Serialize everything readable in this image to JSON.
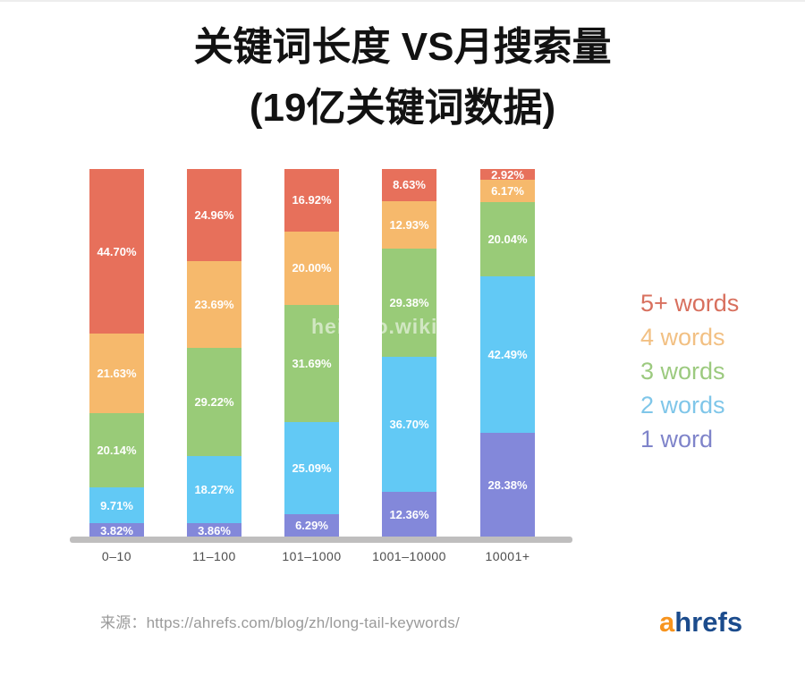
{
  "title": {
    "line1": "关键词长度 VS月搜索量",
    "line2": "(19亿关键词数据)"
  },
  "chart_data": {
    "type": "bar",
    "variant": "stacked-100-percent",
    "title": "关键词长度 VS月搜索量 (19亿关键词数据)",
    "categories": [
      "0–10",
      "11–100",
      "101–1000",
      "1001–10000",
      "10001+"
    ],
    "series": [
      {
        "name": "1 word",
        "color": "#8388da",
        "values": [
          3.82,
          3.86,
          6.29,
          12.36,
          28.38
        ]
      },
      {
        "name": "2 words",
        "color": "#62c9f5",
        "values": [
          9.71,
          18.27,
          25.09,
          36.7,
          42.49
        ]
      },
      {
        "name": "3 words",
        "color": "#99cb78",
        "values": [
          20.14,
          29.22,
          31.69,
          29.38,
          20.04
        ]
      },
      {
        "name": "4 words",
        "color": "#f6b96c",
        "values": [
          21.63,
          23.69,
          20.0,
          12.93,
          6.17
        ]
      },
      {
        "name": "5+ words",
        "color": "#e7705b",
        "values": [
          44.7,
          24.96,
          16.92,
          8.63,
          2.92
        ]
      }
    ],
    "legend": {
      "position": "right",
      "items": [
        {
          "label": "5+ words",
          "color": "#d8705e"
        },
        {
          "label": "4 words",
          "color": "#f2c083"
        },
        {
          "label": "3 words",
          "color": "#9cca7f"
        },
        {
          "label": "2 words",
          "color": "#7fc6e9"
        },
        {
          "label": "1 word",
          "color": "#7f84ca"
        }
      ]
    },
    "value_suffix": "%",
    "value_decimals": 2,
    "ylim": [
      0,
      100
    ],
    "grid": false
  },
  "watermark": {
    "text": "heimao.wiki"
  },
  "footer": {
    "source": "来源：https://ahrefs.com/blog/zh/long-tail-keywords/",
    "logo": {
      "prefix": "a",
      "suffix": "hrefs",
      "prefix_color": "#f7941e",
      "suffix_color": "#1b4b8c"
    }
  }
}
